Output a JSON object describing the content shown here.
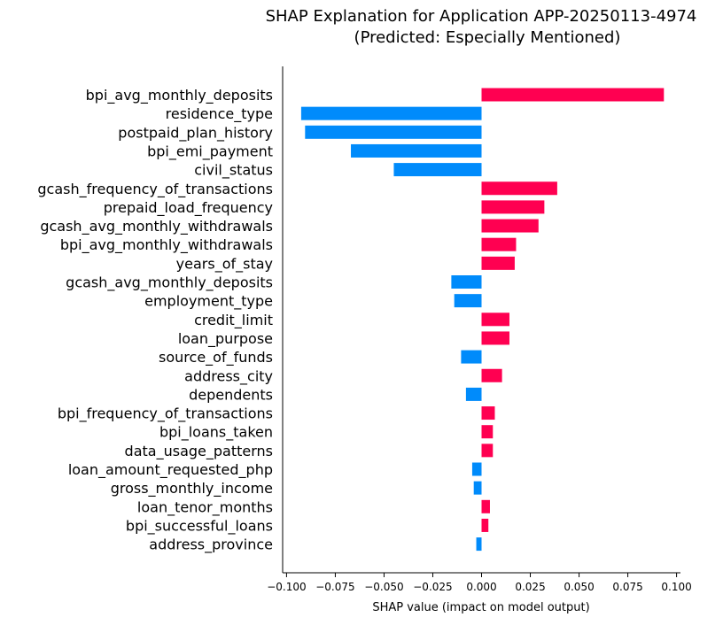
{
  "chart_data": {
    "type": "bar",
    "orientation": "horizontal",
    "title": "SHAP Explanation for Application APP-20250113-4974",
    "subtitle": "(Predicted: Especially Mentioned)",
    "xlabel": "SHAP value (impact on model output)",
    "ylabel": "",
    "xlim": [
      -0.102,
      0.102
    ],
    "xticks": [
      -0.1,
      -0.075,
      -0.05,
      -0.025,
      0.0,
      0.025,
      0.05,
      0.075,
      0.1
    ],
    "xtick_labels": [
      "−0.100",
      "−0.075",
      "−0.050",
      "−0.025",
      "0.000",
      "0.025",
      "0.050",
      "0.075",
      "0.100"
    ],
    "grid": false,
    "colors": {
      "positive": "#ff0051",
      "negative": "#008bfb"
    },
    "categories": [
      "bpi_avg_monthly_deposits",
      "residence_type",
      "postpaid_plan_history",
      "bpi_emi_payment",
      "civil_status",
      "gcash_frequency_of_transactions",
      "prepaid_load_frequency",
      "gcash_avg_monthly_withdrawals",
      "bpi_avg_monthly_withdrawals",
      "years_of_stay",
      "gcash_avg_monthly_deposits",
      "employment_type",
      "credit_limit",
      "loan_purpose",
      "source_of_funds",
      "address_city",
      "dependents",
      "bpi_frequency_of_transactions",
      "bpi_loans_taken",
      "data_usage_patterns",
      "loan_amount_requested_php",
      "gross_monthly_income",
      "loan_tenor_months",
      "bpi_successful_loans",
      "address_province"
    ],
    "values": [
      0.0935,
      -0.0925,
      -0.0905,
      -0.067,
      -0.045,
      0.0388,
      0.0322,
      0.0292,
      0.0177,
      0.017,
      -0.0155,
      -0.014,
      0.0143,
      0.0143,
      -0.0105,
      0.0105,
      -0.008,
      0.0068,
      0.0058,
      0.0058,
      -0.0048,
      -0.004,
      0.0043,
      0.0035,
      -0.0027
    ]
  }
}
